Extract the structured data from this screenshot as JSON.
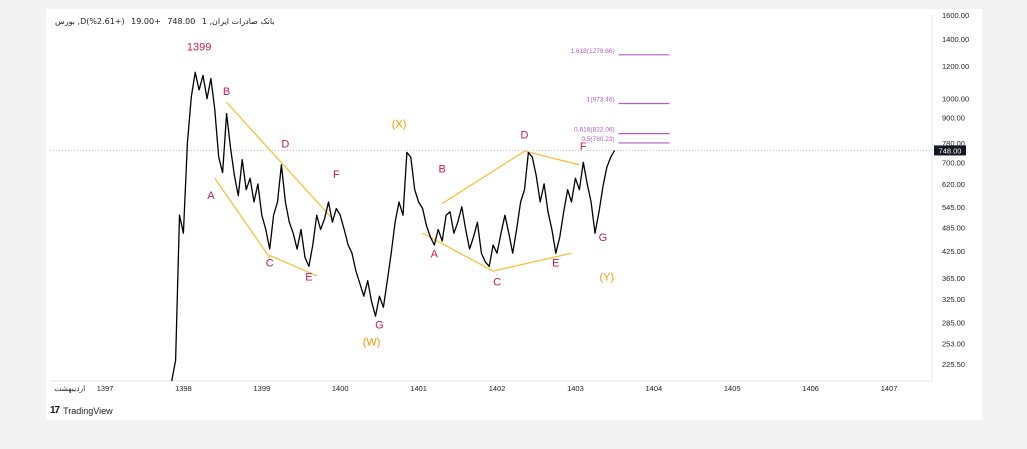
{
  "header": {
    "symbol": "بورس ,Dبانک صادرات ایران, 1",
    "price": "748.00",
    "change": "+19.00",
    "change_pct": "(+2.61%)"
  },
  "footer": {
    "brand": "TradingView"
  },
  "price_label": "748.00",
  "chart_data": {
    "type": "line",
    "title": "",
    "y_scale": "log",
    "ylim": [
      205,
      1600
    ],
    "y_ticks": [
      "1600.00",
      "1400.00",
      "1200.00",
      "1000.00",
      "900.00",
      "780.00",
      "700.00",
      "620.00",
      "545.00",
      "485.00",
      "425.00",
      "365.00",
      "325.00",
      "285.00",
      "253.00",
      "225.50"
    ],
    "x_ticks": [
      "اردیبهشت",
      "1397",
      "1398",
      "1399",
      "1400",
      "1401",
      "1402",
      "1403",
      "1404",
      "1405",
      "1406",
      "1407"
    ],
    "series": [
      {
        "points": [
          [
            1397.85,
            205
          ],
          [
            1397.9,
            230
          ],
          [
            1397.95,
            520
          ],
          [
            1398.0,
            470
          ],
          [
            1398.05,
            780
          ],
          [
            1398.1,
            1010
          ],
          [
            1398.15,
            1160
          ],
          [
            1398.2,
            1050
          ],
          [
            1398.25,
            1140
          ],
          [
            1398.3,
            1000
          ],
          [
            1398.35,
            1120
          ],
          [
            1398.4,
            940
          ],
          [
            1398.45,
            720
          ],
          [
            1398.5,
            660
          ],
          [
            1398.55,
            920
          ],
          [
            1398.6,
            760
          ],
          [
            1398.65,
            650
          ],
          [
            1398.7,
            580
          ],
          [
            1398.75,
            710
          ],
          [
            1398.8,
            600
          ],
          [
            1398.85,
            640
          ],
          [
            1398.9,
            560
          ],
          [
            1398.95,
            620
          ],
          [
            1399.0,
            520
          ],
          [
            1399.05,
            480
          ],
          [
            1399.1,
            430
          ],
          [
            1399.15,
            520
          ],
          [
            1399.2,
            560
          ],
          [
            1399.25,
            690
          ],
          [
            1399.3,
            560
          ],
          [
            1399.35,
            500
          ],
          [
            1399.4,
            470
          ],
          [
            1399.45,
            430
          ],
          [
            1399.5,
            480
          ],
          [
            1399.55,
            410
          ],
          [
            1399.6,
            390
          ],
          [
            1399.65,
            440
          ],
          [
            1399.7,
            520
          ],
          [
            1399.75,
            480
          ],
          [
            1399.8,
            510
          ],
          [
            1399.85,
            560
          ],
          [
            1399.9,
            500
          ],
          [
            1399.95,
            540
          ],
          [
            1400.0,
            520
          ],
          [
            1400.05,
            480
          ],
          [
            1400.1,
            440
          ],
          [
            1400.15,
            420
          ],
          [
            1400.2,
            380
          ],
          [
            1400.25,
            355
          ],
          [
            1400.3,
            330
          ],
          [
            1400.35,
            360
          ],
          [
            1400.4,
            320
          ],
          [
            1400.45,
            295
          ],
          [
            1400.5,
            330
          ],
          [
            1400.55,
            310
          ],
          [
            1400.6,
            360
          ],
          [
            1400.65,
            420
          ],
          [
            1400.7,
            500
          ],
          [
            1400.75,
            560
          ],
          [
            1400.8,
            520
          ],
          [
            1400.85,
            740
          ],
          [
            1400.9,
            720
          ],
          [
            1400.95,
            600
          ],
          [
            1401.0,
            560
          ],
          [
            1401.05,
            540
          ],
          [
            1401.1,
            490
          ],
          [
            1401.15,
            460
          ],
          [
            1401.2,
            440
          ],
          [
            1401.25,
            480
          ],
          [
            1401.3,
            450
          ],
          [
            1401.35,
            520
          ],
          [
            1401.4,
            530
          ],
          [
            1401.45,
            470
          ],
          [
            1401.5,
            500
          ],
          [
            1401.55,
            545
          ],
          [
            1401.6,
            480
          ],
          [
            1401.65,
            430
          ],
          [
            1401.7,
            460
          ],
          [
            1401.75,
            500
          ],
          [
            1401.8,
            420
          ],
          [
            1401.85,
            400
          ],
          [
            1401.9,
            390
          ],
          [
            1401.95,
            440
          ],
          [
            1402.0,
            420
          ],
          [
            1402.05,
            470
          ],
          [
            1402.1,
            520
          ],
          [
            1402.15,
            470
          ],
          [
            1402.2,
            420
          ],
          [
            1402.25,
            480
          ],
          [
            1402.3,
            560
          ],
          [
            1402.35,
            600
          ],
          [
            1402.4,
            740
          ],
          [
            1402.45,
            720
          ],
          [
            1402.5,
            650
          ],
          [
            1402.55,
            560
          ],
          [
            1402.6,
            620
          ],
          [
            1402.65,
            530
          ],
          [
            1402.7,
            480
          ],
          [
            1402.75,
            420
          ],
          [
            1402.8,
            460
          ],
          [
            1402.85,
            530
          ],
          [
            1402.9,
            600
          ],
          [
            1402.95,
            560
          ],
          [
            1403.0,
            640
          ],
          [
            1403.05,
            600
          ],
          [
            1403.1,
            700
          ],
          [
            1403.15,
            620
          ],
          [
            1403.2,
            560
          ],
          [
            1403.25,
            470
          ],
          [
            1403.3,
            530
          ],
          [
            1403.35,
            610
          ],
          [
            1403.4,
            680
          ],
          [
            1403.45,
            720
          ],
          [
            1403.5,
            748
          ]
        ]
      }
    ],
    "fib_levels": [
      {
        "label": "1.618(1279.66)",
        "value": 1279.66
      },
      {
        "label": "1(973.46)",
        "value": 973.46
      },
      {
        "label": "0.618(822.06)",
        "value": 822.06
      },
      {
        "label": "0.5(780.23)",
        "value": 780.23
      }
    ],
    "wave_labels": [
      {
        "text": "1399",
        "x": 1398.2,
        "y": 1310,
        "color": "#c2185b"
      },
      {
        "text": "B",
        "x": 1398.55,
        "y": 1020,
        "color": "#c2185b"
      },
      {
        "text": "A",
        "x": 1398.35,
        "y": 570,
        "color": "#c2185b"
      },
      {
        "text": "C",
        "x": 1399.1,
        "y": 390,
        "color": "#c2185b"
      },
      {
        "text": "D",
        "x": 1399.3,
        "y": 760,
        "color": "#c2185b"
      },
      {
        "text": "E",
        "x": 1399.6,
        "y": 360,
        "color": "#c2185b"
      },
      {
        "text": "F",
        "x": 1399.95,
        "y": 640,
        "color": "#c2185b"
      },
      {
        "text": "G",
        "x": 1400.5,
        "y": 275,
        "color": "#c2185b"
      },
      {
        "text": "(W)",
        "x": 1400.4,
        "y": 250,
        "color": "#ef9a00"
      },
      {
        "text": "(X)",
        "x": 1400.75,
        "y": 850,
        "color": "#ef9a00"
      },
      {
        "text": "A",
        "x": 1401.2,
        "y": 410,
        "color": "#c2185b"
      },
      {
        "text": "B",
        "x": 1401.3,
        "y": 660,
        "color": "#c2185b"
      },
      {
        "text": "C",
        "x": 1402.0,
        "y": 350,
        "color": "#c2185b"
      },
      {
        "text": "D",
        "x": 1402.35,
        "y": 800,
        "color": "#c2185b"
      },
      {
        "text": "E",
        "x": 1402.75,
        "y": 390,
        "color": "#c2185b"
      },
      {
        "text": "F",
        "x": 1403.1,
        "y": 750,
        "color": "#c2185b"
      },
      {
        "text": "G",
        "x": 1403.35,
        "y": 450,
        "color": "#c2185b"
      },
      {
        "text": "(Y)",
        "x": 1403.4,
        "y": 360,
        "color": "#ef9a00"
      }
    ],
    "trendlines": [
      {
        "x1": 1398.55,
        "y1": 980,
        "x2": 1399.9,
        "y2": 510
      },
      {
        "x1": 1398.4,
        "y1": 640,
        "x2": 1399.1,
        "y2": 410
      },
      {
        "x1": 1399.1,
        "y1": 415,
        "x2": 1399.7,
        "y2": 370
      },
      {
        "x1": 1401.05,
        "y1": 470,
        "x2": 1401.95,
        "y2": 380
      },
      {
        "x1": 1401.95,
        "y1": 380,
        "x2": 1402.95,
        "y2": 420
      },
      {
        "x1": 1401.3,
        "y1": 555,
        "x2": 1402.35,
        "y2": 745
      },
      {
        "x1": 1402.35,
        "y1": 745,
        "x2": 1403.05,
        "y2": 690
      }
    ],
    "colors": {
      "line": "#000000",
      "fib": "#b15cc4",
      "trend": "#f5c242",
      "label_wave": "#c2185b",
      "label_degree": "#ef9a00"
    }
  }
}
